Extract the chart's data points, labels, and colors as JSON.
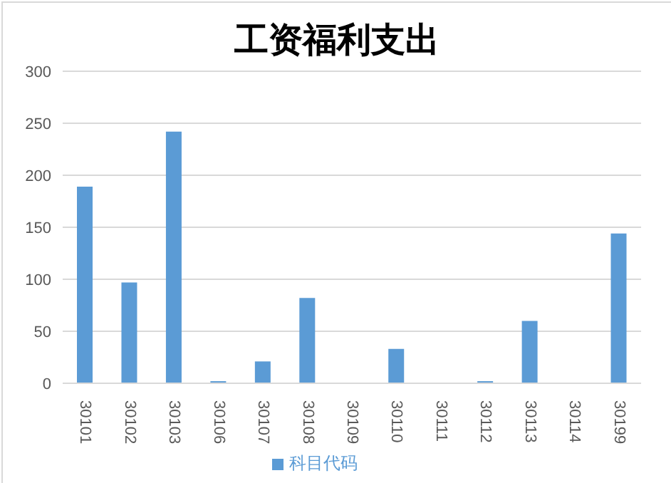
{
  "chart_data": {
    "type": "bar",
    "title": "工资福利支出",
    "categories": [
      "30101",
      "30102",
      "30103",
      "30106",
      "30107",
      "30108",
      "30109",
      "30110",
      "30111",
      "30112",
      "30113",
      "30114",
      "30199"
    ],
    "series": [
      {
        "name": "科目代码",
        "color": "#5b9bd5",
        "values": [
          189,
          97,
          242,
          2,
          21,
          82,
          0,
          33,
          0,
          2,
          60,
          0,
          144
        ]
      }
    ],
    "ylim": [
      0,
      300
    ],
    "yticks": [
      0,
      50,
      100,
      150,
      200,
      250,
      300
    ],
    "grid": "y",
    "legend": "bottom"
  }
}
